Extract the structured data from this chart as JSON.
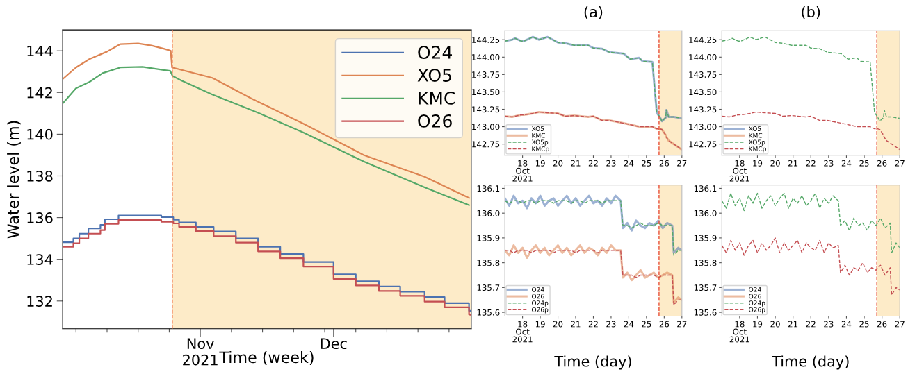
{
  "chart_data": [
    {
      "type": "line",
      "xlabel": "Time (week)",
      "ylabel": "Water level (m)",
      "legend": "top right",
      "xlim": [
        "2021-10-01",
        "2022-01-01"
      ],
      "ylim": [
        130.67,
        145
      ],
      "xticks": [
        {
          "value": "2021-10-04",
          "label": null
        },
        {
          "value": "2021-10-11",
          "label": null
        },
        {
          "value": "2021-10-18",
          "label": null
        },
        {
          "value": "2021-10-25",
          "label": null
        },
        {
          "value": "2021-11-01",
          "label": "Nov\n2021"
        },
        {
          "value": "2021-11-08",
          "label": null
        },
        {
          "value": "2021-11-15",
          "label": null
        },
        {
          "value": "2021-11-22",
          "label": null
        },
        {
          "value": "2021-11-29",
          "label": null
        },
        {
          "value": "2021-12-01",
          "label": "Dec"
        },
        {
          "value": "2021-12-06",
          "label": null
        },
        {
          "value": "2021-12-13",
          "label": null
        },
        {
          "value": "2021-12-20",
          "label": null
        },
        {
          "value": "2021-12-27",
          "label": null
        }
      ],
      "yticks": [
        132,
        134,
        136,
        138,
        140,
        142,
        144
      ],
      "ref_lines": [
        {
          "axis": "x",
          "value": "2021-10-25T17:00",
          "color": "#f4845f",
          "line_style": "dashed"
        }
      ],
      "bands": [
        {
          "axis": "x",
          "from": "2021-10-25T17:00",
          "to": "2022-01-01",
          "color": "#fdebc8"
        }
      ],
      "series": [
        {
          "name": "O24",
          "type": "step",
          "color": "#4c72b0",
          "x": [
            "2021-10-01",
            "2021-10-03T10:00",
            "2021-10-04T18:00",
            "2021-10-06T19:00",
            "2021-10-09T12:00",
            "2021-10-10T12:00",
            "2021-10-13T14:00",
            "2021-10-23T05:00",
            "2021-10-25T22:00",
            "2021-10-27T05:00",
            "2021-10-31",
            "2021-11-04",
            "2021-11-09",
            "2021-11-14",
            "2021-11-19",
            "2021-11-24T05:00",
            "2021-12-01",
            "2021-12-06",
            "2021-12-11T05:00",
            "2021-12-16",
            "2021-12-21T12:00",
            "2021-12-26",
            "2021-12-31T12:00",
            "2021-12-31T23:00"
          ],
          "values": [
            134.82,
            135.0,
            135.23,
            135.48,
            135.65,
            135.92,
            136.1,
            136.02,
            135.9,
            135.77,
            135.55,
            135.33,
            135.0,
            134.6,
            134.25,
            133.87,
            133.28,
            132.95,
            132.7,
            132.45,
            132.19,
            131.9,
            131.53,
            131.5
          ]
        },
        {
          "name": "XO5",
          "type": "line",
          "color": "#dd8452",
          "x": [
            "2021-10-01",
            "2021-10-04",
            "2021-10-07",
            "2021-10-11",
            "2021-10-14",
            "2021-10-18",
            "2021-10-21",
            "2021-10-23T18:00",
            "2021-10-25T08:00",
            "2021-10-25T15:00",
            "2021-11-03T17:00",
            "2021-11-12T14:00",
            "2021-11-24T05:00",
            "2021-12-07T19:00",
            "2021-12-21T12:00",
            "2021-12-31T12:00"
          ],
          "values": [
            142.64,
            143.2,
            143.6,
            143.96,
            144.32,
            144.35,
            144.25,
            144.1,
            144.0,
            143.2,
            142.7,
            141.7,
            140.5,
            139.0,
            137.96,
            136.94
          ]
        },
        {
          "name": "KMC",
          "type": "line",
          "color": "#55a868",
          "x": [
            "2021-10-01",
            "2021-10-04",
            "2021-10-07",
            "2021-10-10",
            "2021-10-14",
            "2021-10-19",
            "2021-10-23T18:00",
            "2021-10-25T05:00",
            "2021-10-25T18:00",
            "2021-10-27T19:00",
            "2021-11-03T17:00",
            "2021-11-14",
            "2021-11-24T05:00",
            "2021-12-07T19:00",
            "2021-12-21T12:00",
            "2021-12-31T12:00"
          ],
          "values": [
            141.47,
            142.2,
            142.5,
            142.93,
            143.2,
            143.23,
            143.08,
            143.04,
            142.79,
            142.57,
            141.9,
            141.03,
            140.08,
            138.69,
            137.45,
            136.6
          ]
        },
        {
          "name": "O26",
          "type": "step",
          "color": "#c44e52",
          "x": [
            "2021-10-01",
            "2021-10-03T10:00",
            "2021-10-04T18:00",
            "2021-10-06T19:00",
            "2021-10-09T12:00",
            "2021-10-10T12:00",
            "2021-10-13T14:00",
            "2021-10-23T05:00",
            "2021-10-25T22:00",
            "2021-10-27T05:00",
            "2021-10-31",
            "2021-11-04",
            "2021-11-09",
            "2021-11-14",
            "2021-11-19",
            "2021-11-24T05:00",
            "2021-12-01",
            "2021-12-06",
            "2021-12-11T05:00",
            "2021-12-16",
            "2021-12-21T12:00",
            "2021-12-26",
            "2021-12-31T12:00",
            "2021-12-31T23:00"
          ],
          "values": [
            134.6,
            134.77,
            135.0,
            135.23,
            135.4,
            135.7,
            135.88,
            135.8,
            135.72,
            135.55,
            135.35,
            135.11,
            134.8,
            134.38,
            134.05,
            133.65,
            133.06,
            132.75,
            132.48,
            132.25,
            131.97,
            131.7,
            131.35,
            131.33
          ]
        }
      ]
    },
    {
      "type": "line",
      "title": "(a)",
      "legend": "bottom left",
      "x": [
        "2021-10-17T00:00",
        "2021-10-17T10:00",
        "2021-10-17T14:00",
        "2021-10-17T22:00",
        "2021-10-18T02:00",
        "2021-10-18T14:00",
        "2021-10-18T22:00",
        "2021-10-19T10:00",
        "2021-10-20T00:00",
        "2021-10-20T10:00",
        "2021-10-20T22:00",
        "2021-10-21T17:00",
        "2021-10-22T00:00",
        "2021-10-22T12:00",
        "2021-10-22T22:00",
        "2021-10-23T17:00",
        "2021-10-24T02:00",
        "2021-10-24T14:00",
        "2021-10-24T19:00",
        "2021-10-25T08:00",
        "2021-10-25T14:00",
        "2021-10-25T18:00",
        "2021-10-25T21:00",
        "2021-10-26T02:00",
        "2021-10-26T03:00",
        "2021-10-26T06:00",
        "2021-10-26T13:00",
        "2021-10-27T00:00"
      ],
      "xlim": [
        "2021-10-17",
        "2021-10-27"
      ],
      "ylim": [
        142.59,
        144.38
      ],
      "xticks": [
        {
          "value": "2021-10-18",
          "label": "18\nOct\n2021"
        },
        {
          "value": "2021-10-19",
          "label": "19"
        },
        {
          "value": "2021-10-20",
          "label": "20"
        },
        {
          "value": "2021-10-21",
          "label": "21"
        },
        {
          "value": "2021-10-22",
          "label": "22"
        },
        {
          "value": "2021-10-23",
          "label": "23"
        },
        {
          "value": "2021-10-24",
          "label": "24"
        },
        {
          "value": "2021-10-25",
          "label": "25"
        },
        {
          "value": "2021-10-26",
          "label": "26"
        },
        {
          "value": "2021-10-27",
          "label": "27"
        }
      ],
      "yticks": [
        142.75,
        {
          "value": 143,
          "label": "143.00"
        },
        143.25,
        {
          "value": 143.5,
          "label": "143.50"
        },
        143.75,
        {
          "value": 144,
          "label": "144.00"
        },
        144.25
      ],
      "ref_lines": [
        {
          "axis": "x",
          "value": "2021-10-25T17:00",
          "color": "#e8503a",
          "line_style": "dashed"
        }
      ],
      "bands": [
        {
          "axis": "x",
          "from": "2021-10-25T17:00",
          "to": "2021-10-27",
          "color": "#fdebc8"
        }
      ],
      "series": [
        {
          "name": "XO5",
          "color": "#4c72b0",
          "values": [
            144.23,
            144.25,
            144.27,
            144.23,
            144.23,
            144.29,
            144.25,
            144.29,
            144.21,
            144.2,
            144.17,
            144.17,
            144.13,
            144.12,
            144.07,
            144.05,
            143.97,
            143.99,
            143.94,
            143.93,
            143.2,
            143.14,
            143.08,
            143.13,
            143.24,
            143.14,
            143.14,
            143.12
          ]
        },
        {
          "name": "KMC",
          "color": "#dd8452",
          "values": [
            143.15,
            143.14,
            143.15,
            143.17,
            143.17,
            143.19,
            143.21,
            143.2,
            143.19,
            143.15,
            143.16,
            143.14,
            143.15,
            143.09,
            143.09,
            143.05,
            143.03,
            143.0,
            143.0,
            143.0,
            142.97,
            142.97,
            142.96,
            142.88,
            142.85,
            142.8,
            142.75,
            142.67
          ]
        },
        {
          "name": "XO5p",
          "color": "#55a868",
          "line_style": "dashed",
          "values": [
            144.23,
            144.25,
            144.27,
            144.23,
            144.23,
            144.29,
            144.25,
            144.29,
            144.21,
            144.2,
            144.17,
            144.17,
            144.13,
            144.12,
            144.07,
            144.05,
            143.97,
            143.99,
            143.94,
            143.93,
            143.2,
            143.14,
            143.08,
            143.13,
            143.24,
            143.14,
            143.14,
            143.12
          ]
        },
        {
          "name": "KMCp",
          "color": "#c44e52",
          "line_style": "dashed",
          "values": [
            143.15,
            143.14,
            143.15,
            143.17,
            143.17,
            143.19,
            143.21,
            143.2,
            143.19,
            143.15,
            143.16,
            143.14,
            143.15,
            143.09,
            143.09,
            143.05,
            143.03,
            143.0,
            143.0,
            143.0,
            142.97,
            142.97,
            142.96,
            142.88,
            142.85,
            142.8,
            142.75,
            142.67
          ]
        }
      ]
    },
    {
      "type": "line",
      "xlabel": "Time (day)",
      "legend": "bottom left",
      "x": [
        "2021-10-17T00:00",
        "2021-10-17T06:00",
        "2021-10-17T12:00",
        "2021-10-17T18:00",
        "2021-10-18T00:00",
        "2021-10-18T06:00",
        "2021-10-18T12:00",
        "2021-10-18T18:00",
        "2021-10-19T00:00",
        "2021-10-19T06:00",
        "2021-10-19T12:00",
        "2021-10-19T18:00",
        "2021-10-20T00:00",
        "2021-10-20T06:00",
        "2021-10-20T12:00",
        "2021-10-20T18:00",
        "2021-10-21T00:00",
        "2021-10-21T06:00",
        "2021-10-21T12:00",
        "2021-10-21T18:00",
        "2021-10-22T00:00",
        "2021-10-22T06:00",
        "2021-10-22T12:00",
        "2021-10-22T18:00",
        "2021-10-23T00:00",
        "2021-10-23T06:00",
        "2021-10-23T13:00",
        "2021-10-23T16:00",
        "2021-10-23T22:00",
        "2021-10-24T04:00",
        "2021-10-24T10:00",
        "2021-10-24T16:00",
        "2021-10-24T22:00",
        "2021-10-25T04:00",
        "2021-10-25T10:00",
        "2021-10-25T16:00",
        "2021-10-25T22:00",
        "2021-10-26T04:00",
        "2021-10-26T11:00",
        "2021-10-26T13:00",
        "2021-10-26T19:00",
        "2021-10-27T00:00"
      ],
      "xlim": [
        "2021-10-17",
        "2021-10-27"
      ],
      "ylim": [
        135.585,
        136.113
      ],
      "xticks": [
        {
          "value": "2021-10-18",
          "label": "18\nOct\n2021"
        },
        {
          "value": "2021-10-19",
          "label": "19"
        },
        {
          "value": "2021-10-20",
          "label": "20"
        },
        {
          "value": "2021-10-21",
          "label": "21"
        },
        {
          "value": "2021-10-22",
          "label": "22"
        },
        {
          "value": "2021-10-23",
          "label": "23"
        },
        {
          "value": "2021-10-24",
          "label": "24"
        },
        {
          "value": "2021-10-25",
          "label": "25"
        },
        {
          "value": "2021-10-26",
          "label": "26"
        },
        {
          "value": "2021-10-27",
          "label": "27"
        }
      ],
      "yticks": [
        135.6,
        135.7,
        135.8,
        135.9,
        {
          "value": 136,
          "label": "136.0"
        },
        136.1
      ],
      "ref_lines": [
        {
          "axis": "x",
          "value": "2021-10-25T17:00",
          "color": "#e8503a",
          "line_style": "dashed"
        }
      ],
      "bands": [
        {
          "axis": "x",
          "from": "2021-10-25T17:00",
          "to": "2021-10-27",
          "color": "#fdebc8"
        }
      ],
      "series": [
        {
          "name": "O24",
          "color": "#4c72b0",
          "values": [
            136.06,
            136.03,
            136.07,
            136.04,
            136.05,
            136.02,
            136.06,
            136.04,
            136.07,
            136.03,
            136.05,
            136.06,
            136.03,
            136.05,
            136.07,
            136.04,
            136.06,
            136.03,
            136.05,
            136.07,
            136.04,
            136.05,
            136.03,
            136.06,
            136.04,
            136.07,
            136.05,
            135.94,
            135.96,
            135.93,
            135.97,
            135.95,
            135.94,
            135.96,
            135.95,
            135.97,
            135.94,
            135.96,
            135.95,
            135.84,
            135.86,
            135.85
          ]
        },
        {
          "name": "O26",
          "color": "#dd8452",
          "values": [
            135.85,
            135.83,
            135.87,
            135.84,
            135.86,
            135.82,
            135.85,
            135.87,
            135.84,
            135.86,
            135.83,
            135.85,
            135.87,
            135.84,
            135.86,
            135.83,
            135.85,
            135.87,
            135.84,
            135.86,
            135.85,
            135.83,
            135.86,
            135.84,
            135.87,
            135.85,
            135.85,
            135.74,
            135.76,
            135.73,
            135.75,
            135.77,
            135.74,
            135.75,
            135.76,
            135.74,
            135.75,
            135.76,
            135.75,
            135.64,
            135.66,
            135.65
          ]
        },
        {
          "name": "O24p",
          "color": "#55a868",
          "line_style": "dashed",
          "values": [
            136.05,
            136.04,
            136.05,
            136.05,
            136.04,
            136.05,
            136.05,
            136.04,
            136.05,
            136.05,
            136.05,
            136.04,
            136.05,
            136.05,
            136.05,
            136.04,
            136.05,
            136.05,
            136.04,
            136.05,
            136.05,
            136.05,
            136.04,
            136.05,
            136.05,
            136.05,
            136.05,
            135.95,
            135.95,
            135.94,
            135.95,
            135.96,
            135.95,
            135.95,
            135.95,
            135.96,
            135.95,
            135.95,
            135.95,
            135.83,
            135.85,
            135.85
          ]
        },
        {
          "name": "O26p",
          "color": "#c44e52",
          "line_style": "dashed",
          "values": [
            135.85,
            135.85,
            135.84,
            135.85,
            135.85,
            135.85,
            135.84,
            135.85,
            135.85,
            135.85,
            135.85,
            135.84,
            135.85,
            135.85,
            135.85,
            135.85,
            135.84,
            135.85,
            135.85,
            135.85,
            135.85,
            135.84,
            135.85,
            135.85,
            135.85,
            135.85,
            135.85,
            135.75,
            135.75,
            135.75,
            135.74,
            135.75,
            135.75,
            135.75,
            135.75,
            135.74,
            135.75,
            135.75,
            135.75,
            135.63,
            135.65,
            135.65
          ]
        }
      ]
    },
    {
      "type": "line",
      "title": "(b)",
      "legend": "bottom left",
      "x": [
        "2021-10-17T00:00",
        "2021-10-17T10:00",
        "2021-10-17T14:00",
        "2021-10-17T22:00",
        "2021-10-18T02:00",
        "2021-10-18T14:00",
        "2021-10-18T22:00",
        "2021-10-19T10:00",
        "2021-10-20T00:00",
        "2021-10-20T10:00",
        "2021-10-20T22:00",
        "2021-10-21T17:00",
        "2021-10-22T00:00",
        "2021-10-22T12:00",
        "2021-10-22T22:00",
        "2021-10-23T17:00",
        "2021-10-24T02:00",
        "2021-10-24T14:00",
        "2021-10-24T19:00",
        "2021-10-25T08:00",
        "2021-10-25T14:00",
        "2021-10-25T18:00",
        "2021-10-25T21:00",
        "2021-10-26T02:00",
        "2021-10-26T03:00",
        "2021-10-26T06:00",
        "2021-10-26T13:00",
        "2021-10-27T00:00"
      ],
      "xlim": [
        "2021-10-17",
        "2021-10-27"
      ],
      "ylim": [
        142.59,
        144.38
      ],
      "xticks": [
        {
          "value": "2021-10-18",
          "label": "18\nOct\n2021"
        },
        {
          "value": "2021-10-19",
          "label": "19"
        },
        {
          "value": "2021-10-20",
          "label": "20"
        },
        {
          "value": "2021-10-21",
          "label": "21"
        },
        {
          "value": "2021-10-22",
          "label": "22"
        },
        {
          "value": "2021-10-23",
          "label": "23"
        },
        {
          "value": "2021-10-24",
          "label": "24"
        },
        {
          "value": "2021-10-25",
          "label": "25"
        },
        {
          "value": "2021-10-26",
          "label": "26"
        },
        {
          "value": "2021-10-27",
          "label": "27"
        }
      ],
      "yticks": [
        142.75,
        {
          "value": 143,
          "label": "143.00"
        },
        143.25,
        {
          "value": 143.5,
          "label": "143.50"
        },
        143.75,
        {
          "value": 144,
          "label": "144.00"
        },
        144.25
      ],
      "ref_lines": [
        {
          "axis": "x",
          "value": "2021-10-25T17:00",
          "color": "#e8503a",
          "line_style": "dashed"
        }
      ],
      "bands": [
        {
          "axis": "x",
          "from": "2021-10-25T17:00",
          "to": "2021-10-27",
          "color": "#fdebc8"
        }
      ],
      "series": [
        {
          "name": "XO5",
          "color": "#4c72b0",
          "values": [
            null,
            null,
            null,
            null,
            null,
            null,
            null,
            null,
            null,
            null,
            null,
            null,
            null,
            null,
            null,
            null,
            null,
            null,
            null,
            null,
            null,
            null,
            null,
            null,
            null,
            null,
            null,
            null
          ]
        },
        {
          "name": "KMC",
          "color": "#dd8452",
          "values": [
            null,
            null,
            null,
            null,
            null,
            null,
            null,
            null,
            null,
            null,
            null,
            null,
            null,
            null,
            null,
            null,
            null,
            null,
            null,
            null,
            null,
            null,
            null,
            null,
            null,
            null,
            null,
            null
          ]
        },
        {
          "name": "XO5p",
          "color": "#55a868",
          "line_style": "dashed",
          "values": [
            144.23,
            144.25,
            144.27,
            144.23,
            144.23,
            144.29,
            144.25,
            144.29,
            144.21,
            144.2,
            144.17,
            144.17,
            144.13,
            144.12,
            144.07,
            144.05,
            143.97,
            143.99,
            143.94,
            143.93,
            143.2,
            143.14,
            143.08,
            143.13,
            143.24,
            143.14,
            143.14,
            143.12
          ]
        },
        {
          "name": "KMCp",
          "color": "#c44e52",
          "line_style": "dashed",
          "values": [
            143.15,
            143.14,
            143.15,
            143.17,
            143.17,
            143.19,
            143.21,
            143.2,
            143.19,
            143.15,
            143.16,
            143.14,
            143.15,
            143.09,
            143.09,
            143.05,
            143.03,
            143.0,
            143.0,
            143.0,
            142.97,
            142.97,
            142.96,
            142.88,
            142.85,
            142.8,
            142.75,
            142.67
          ]
        }
      ]
    },
    {
      "type": "line",
      "xlabel": "Time (day)",
      "legend": "bottom left",
      "x": [
        "2021-10-17T00:00",
        "2021-10-17T06:00",
        "2021-10-17T12:00",
        "2021-10-17T18:00",
        "2021-10-18T00:00",
        "2021-10-18T06:00",
        "2021-10-18T12:00",
        "2021-10-18T18:00",
        "2021-10-19T00:00",
        "2021-10-19T06:00",
        "2021-10-19T12:00",
        "2021-10-19T18:00",
        "2021-10-20T00:00",
        "2021-10-20T06:00",
        "2021-10-20T12:00",
        "2021-10-20T18:00",
        "2021-10-21T00:00",
        "2021-10-21T06:00",
        "2021-10-21T12:00",
        "2021-10-21T18:00",
        "2021-10-22T00:00",
        "2021-10-22T06:00",
        "2021-10-22T12:00",
        "2021-10-22T18:00",
        "2021-10-23T00:00",
        "2021-10-23T06:00",
        "2021-10-23T13:00",
        "2021-10-23T16:00",
        "2021-10-23T22:00",
        "2021-10-24T04:00",
        "2021-10-24T10:00",
        "2021-10-24T16:00",
        "2021-10-24T22:00",
        "2021-10-25T04:00",
        "2021-10-25T10:00",
        "2021-10-25T16:00",
        "2021-10-25T22:00",
        "2021-10-26T04:00",
        "2021-10-26T11:00",
        "2021-10-26T13:00",
        "2021-10-26T19:00",
        "2021-10-27T00:00"
      ],
      "xlim": [
        "2021-10-17",
        "2021-10-27"
      ],
      "ylim": [
        135.585,
        136.113
      ],
      "xticks": [
        {
          "value": "2021-10-18",
          "label": "18\nOct\n2021"
        },
        {
          "value": "2021-10-19",
          "label": "19"
        },
        {
          "value": "2021-10-20",
          "label": "20"
        },
        {
          "value": "2021-10-21",
          "label": "21"
        },
        {
          "value": "2021-10-22",
          "label": "22"
        },
        {
          "value": "2021-10-23",
          "label": "23"
        },
        {
          "value": "2021-10-24",
          "label": "24"
        },
        {
          "value": "2021-10-25",
          "label": "25"
        },
        {
          "value": "2021-10-26",
          "label": "26"
        },
        {
          "value": "2021-10-27",
          "label": "27"
        }
      ],
      "yticks": [
        135.6,
        135.7,
        135.8,
        135.9,
        {
          "value": 136,
          "label": "136.0"
        },
        136.1
      ],
      "ref_lines": [
        {
          "axis": "x",
          "value": "2021-10-25T17:00",
          "color": "#e8503a",
          "line_style": "dashed"
        }
      ],
      "bands": [
        {
          "axis": "x",
          "from": "2021-10-25T17:00",
          "to": "2021-10-27",
          "color": "#fdebc8"
        }
      ],
      "series": [
        {
          "name": "O24",
          "color": "#4c72b0",
          "values": [
            null,
            null,
            null,
            null,
            null,
            null,
            null,
            null,
            null,
            null,
            null,
            null,
            null,
            null,
            null,
            null,
            null,
            null,
            null,
            null,
            null,
            null,
            null,
            null,
            null,
            null,
            null,
            null,
            null,
            null,
            null,
            null,
            null,
            null,
            null,
            null,
            null,
            null,
            null,
            null,
            null,
            null
          ]
        },
        {
          "name": "O26",
          "color": "#dd8452",
          "values": [
            null,
            null,
            null,
            null,
            null,
            null,
            null,
            null,
            null,
            null,
            null,
            null,
            null,
            null,
            null,
            null,
            null,
            null,
            null,
            null,
            null,
            null,
            null,
            null,
            null,
            null,
            null,
            null,
            null,
            null,
            null,
            null,
            null,
            null,
            null,
            null,
            null,
            null,
            null,
            null,
            null,
            null
          ]
        },
        {
          "name": "O24p",
          "color": "#55a868",
          "line_style": "dashed",
          "values": [
            136.05,
            136.02,
            136.08,
            136.03,
            136.06,
            136.01,
            136.07,
            136.04,
            136.08,
            136.02,
            136.05,
            136.07,
            136.03,
            136.06,
            136.08,
            136.02,
            136.06,
            136.04,
            136.07,
            136.03,
            136.05,
            136.08,
            136.02,
            136.06,
            136.04,
            136.07,
            136.05,
            135.95,
            135.97,
            135.93,
            135.98,
            135.95,
            135.96,
            135.93,
            135.97,
            135.95,
            135.98,
            135.94,
            135.96,
            135.84,
            135.88,
            135.86
          ]
        },
        {
          "name": "O26p",
          "color": "#c44e52",
          "line_style": "dashed",
          "values": [
            135.87,
            135.84,
            135.89,
            135.85,
            135.88,
            135.83,
            135.87,
            135.89,
            135.84,
            135.88,
            135.85,
            135.87,
            135.9,
            135.84,
            135.88,
            135.85,
            135.87,
            135.89,
            135.84,
            135.88,
            135.86,
            135.85,
            135.89,
            135.84,
            135.88,
            135.86,
            135.87,
            135.76,
            135.79,
            135.75,
            135.78,
            135.77,
            135.8,
            135.76,
            135.78,
            135.77,
            135.79,
            135.75,
            135.78,
            135.67,
            135.7,
            135.69
          ]
        }
      ]
    }
  ]
}
